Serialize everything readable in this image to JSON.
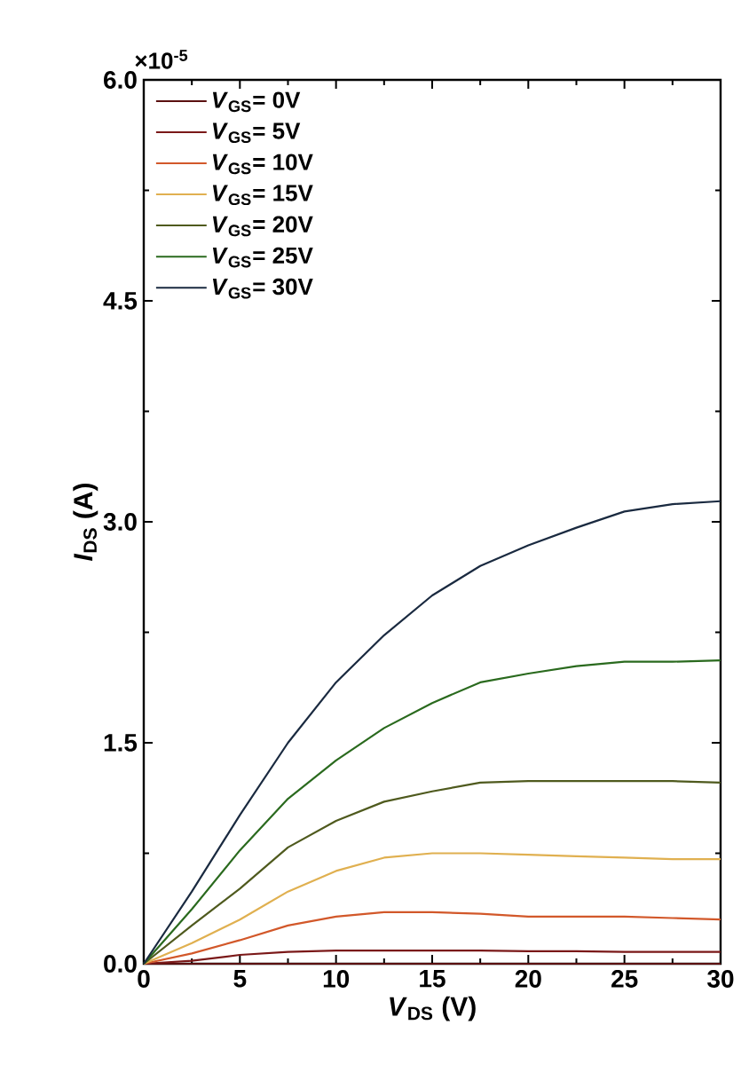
{
  "chart_data": {
    "type": "line",
    "xlabel": "*V*$_{DS}$ (V)",
    "ylabel": "*I*$_{DS}$ (A)",
    "annotations": [
      "×10$^{-5}$"
    ],
    "x": [
      0,
      2.5,
      5,
      7.5,
      10,
      12.5,
      15,
      17.5,
      20,
      22.5,
      25,
      27.5,
      30
    ],
    "series": [
      {
        "name": "*V*$_{GS}$= 0V",
        "color": "#5a1010",
        "values": [
          0,
          0,
          0,
          0,
          0,
          0,
          0,
          0,
          0,
          0,
          0,
          0,
          0
        ]
      },
      {
        "name": "*V*$_{GS}$= 5V",
        "color": "#7a1818",
        "values": [
          0,
          0.02,
          0.06,
          0.08,
          0.09,
          0.09,
          0.09,
          0.09,
          0.085,
          0.085,
          0.08,
          0.08,
          0.08
        ]
      },
      {
        "name": "*V*$_{GS}$= 10V",
        "color": "#d2582a",
        "values": [
          0,
          0.07,
          0.16,
          0.26,
          0.32,
          0.35,
          0.35,
          0.34,
          0.32,
          0.32,
          0.32,
          0.31,
          0.3
        ]
      },
      {
        "name": "*V*$_{GS}$= 15V",
        "color": "#e0b050",
        "values": [
          0,
          0.14,
          0.3,
          0.49,
          0.63,
          0.72,
          0.75,
          0.75,
          0.74,
          0.73,
          0.72,
          0.71,
          0.71
        ]
      },
      {
        "name": "*V*$_{GS}$= 20V",
        "color": "#4f5a1e",
        "values": [
          0,
          0.26,
          0.51,
          0.79,
          0.97,
          1.1,
          1.17,
          1.23,
          1.24,
          1.24,
          1.24,
          1.24,
          1.23
        ]
      },
      {
        "name": "*V*$_{GS}$= 25V",
        "color": "#2a6a1e",
        "values": [
          0,
          0.37,
          0.77,
          1.12,
          1.38,
          1.6,
          1.77,
          1.91,
          1.97,
          2.02,
          2.05,
          2.05,
          2.06
        ]
      },
      {
        "name": "*V*$_{GS}$= 30V",
        "color": "#1a2a40",
        "values": [
          0,
          0.49,
          1.01,
          1.5,
          1.91,
          2.23,
          2.5,
          2.7,
          2.84,
          2.96,
          3.07,
          3.12,
          3.14
        ]
      }
    ],
    "xlim": [
      0,
      30
    ],
    "xticks": [
      0,
      5,
      10,
      15,
      20,
      25,
      30
    ],
    "ylim": [
      0,
      6
    ],
    "yticks": [
      {
        "value": 0,
        "label": "0.0"
      },
      {
        "value": 1.5,
        "label": "1.5"
      },
      {
        "value": 3,
        "label": "3.0"
      },
      {
        "value": 4.5,
        "label": "4.5"
      },
      {
        "value": 6,
        "label": "6.0"
      }
    ],
    "legend": "top left",
    "grid": false,
    "marker": "none",
    "line_style": "solid"
  }
}
